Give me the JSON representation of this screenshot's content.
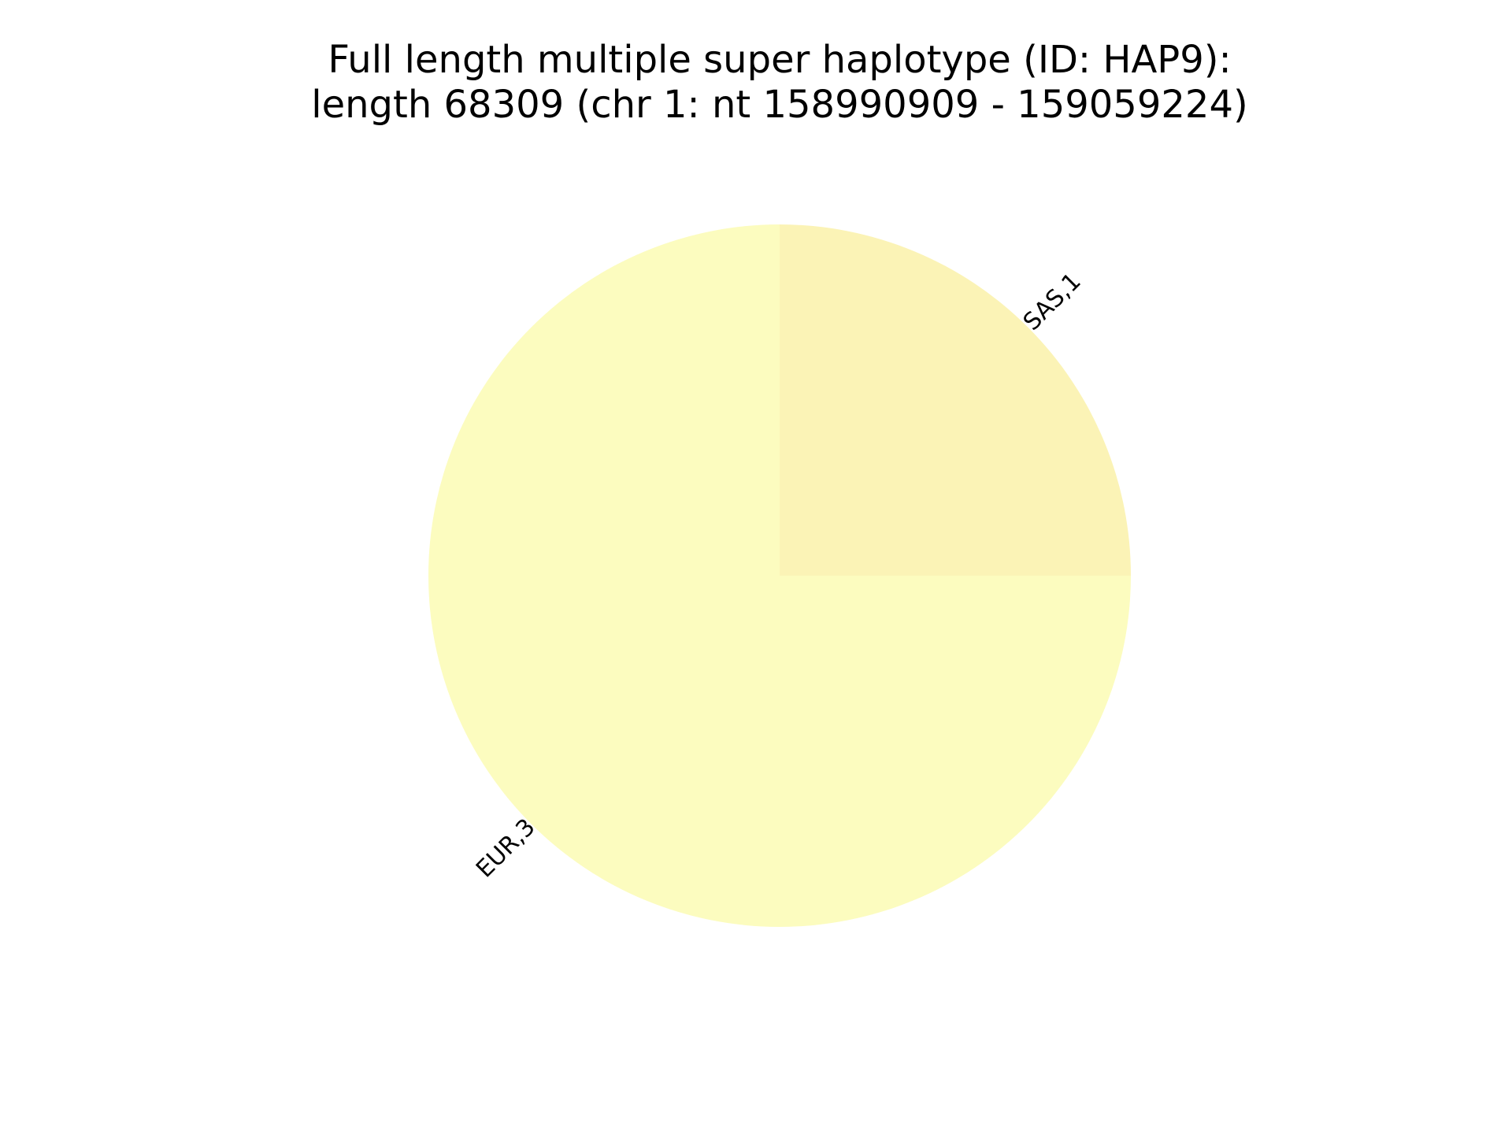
{
  "chart_data": {
    "type": "pie",
    "title_lines": [
      "Full length multiple super haplotype (ID: HAP9):",
      "length 68309 (chr 1: nt 158990909 - 159059224)"
    ],
    "slices": [
      {
        "label": "SAS,1",
        "value": 1,
        "color": "#fbf3b6"
      },
      {
        "label": "EUR,3",
        "value": 3,
        "color": "#fcfcbf"
      }
    ],
    "start_angle_deg": 90,
    "direction": "clockwise"
  }
}
